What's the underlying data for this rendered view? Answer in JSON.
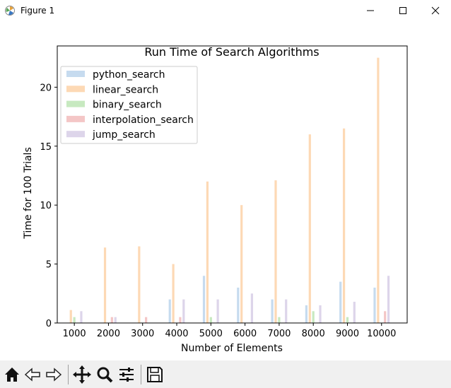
{
  "window": {
    "title": "Figure 1"
  },
  "toolbar": {
    "buttons": [
      {
        "name": "home-icon"
      },
      {
        "name": "back-arrow-icon"
      },
      {
        "name": "forward-arrow-icon"
      },
      {
        "name": "pan-icon"
      },
      {
        "name": "zoom-icon"
      },
      {
        "name": "configure-subplots-icon"
      },
      {
        "name": "save-icon"
      }
    ]
  },
  "chart_data": {
    "type": "bar",
    "title": "Run Time of Search Algorithms",
    "xlabel": "Number of Elements",
    "ylabel": "Time for 100 Trials",
    "categories": [
      "1000",
      "2000",
      "3000",
      "4000",
      "5000",
      "6000",
      "7000",
      "8000",
      "9000",
      "10000"
    ],
    "x": [
      1000,
      2000,
      3000,
      4000,
      5000,
      6000,
      7000,
      8000,
      9000,
      10000
    ],
    "xlim": [
      500,
      10750
    ],
    "ylim": [
      0,
      23.5
    ],
    "yticks": [
      0,
      5,
      10,
      15,
      20
    ],
    "legend_position": "upper-left",
    "grid": false,
    "series": [
      {
        "name": "python_search",
        "color": "#c6dbef",
        "values": [
          0.0,
          0.0,
          0.0,
          2.0,
          4.0,
          3.0,
          2.0,
          1.5,
          3.5,
          3.0
        ]
      },
      {
        "name": "linear_search",
        "color": "#fdd9b5",
        "values": [
          1.1,
          6.4,
          6.5,
          5.0,
          12.0,
          10.0,
          12.1,
          16.0,
          16.5,
          22.5
        ]
      },
      {
        "name": "binary_search",
        "color": "#c7e9c0",
        "values": [
          0.5,
          0.0,
          0.0,
          0.0,
          0.5,
          0.0,
          0.5,
          1.0,
          0.5,
          0.0
        ]
      },
      {
        "name": "interpolation_search",
        "color": "#f4c6c6",
        "values": [
          0.0,
          0.5,
          0.5,
          0.5,
          0.0,
          0.0,
          0.0,
          0.0,
          0.0,
          1.0
        ]
      },
      {
        "name": "jump_search",
        "color": "#ddd5ea",
        "values": [
          1.0,
          0.5,
          0.0,
          2.0,
          2.0,
          2.5,
          2.0,
          1.5,
          1.8,
          4.0
        ]
      }
    ]
  }
}
